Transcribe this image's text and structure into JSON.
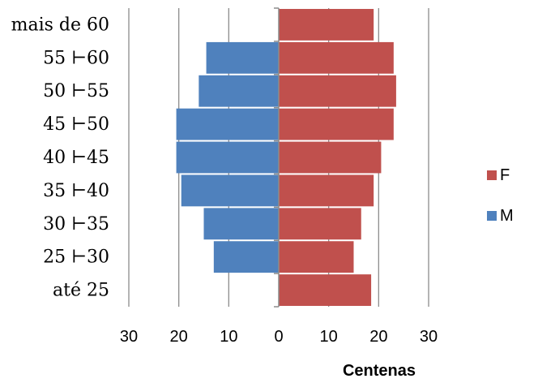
{
  "chart_data": {
    "type": "bar",
    "orientation": "horizontal",
    "categories": [
      "até 25",
      "25 ⊢30",
      "30 ⊢35",
      "35 ⊢40",
      "40 ⊢45",
      "45 ⊢50",
      "50 ⊢55",
      "55 ⊢60",
      "mais de 60"
    ],
    "series": [
      {
        "name": "F",
        "color": "#c0504d",
        "side": "right",
        "values": [
          18.5,
          15,
          16.5,
          19,
          20.5,
          23,
          23.5,
          23,
          19
        ]
      },
      {
        "name": "M",
        "color": "#4f81bd",
        "side": "left",
        "values": [
          null,
          13,
          15,
          19.5,
          20.5,
          20.5,
          16,
          14.5,
          null
        ]
      }
    ],
    "xlabel": "Centenas",
    "xlim": [
      -30,
      30
    ],
    "xticks": [
      -30,
      -20,
      -10,
      0,
      10,
      20,
      30
    ],
    "xtick_labels": [
      "30",
      "20",
      "10",
      "0",
      "10",
      "20",
      "30"
    ],
    "grid": true,
    "legend_position": "right"
  }
}
